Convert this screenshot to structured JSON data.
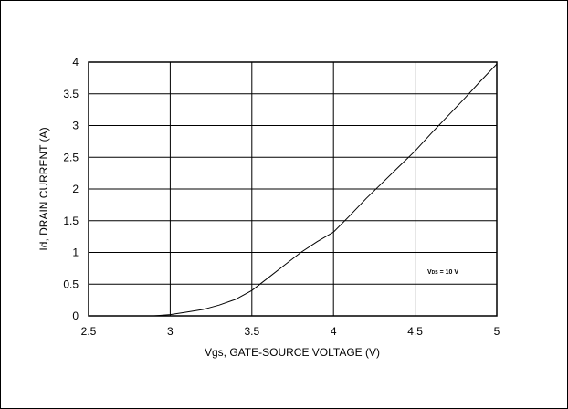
{
  "chart_data": {
    "type": "line",
    "xlabel": "Vgs, GATE-SOURCE VOLTAGE  (V)",
    "ylabel": "Id, DRAIN CURRENT (A)",
    "xlim": [
      2.5,
      5
    ],
    "ylim": [
      0,
      4
    ],
    "x_ticks": [
      "2.5",
      "3",
      "3.5",
      "4",
      "4.5",
      "5"
    ],
    "y_ticks": [
      "0",
      "0.5",
      "1",
      "1.5",
      "2",
      "2.5",
      "3",
      "3.5",
      "4"
    ],
    "grid": true,
    "annotation": {
      "prefix": "V",
      "subscript": "DS",
      "suffix": " = 10 V"
    },
    "series": [
      {
        "x": [
          2.5,
          2.9,
          3.0,
          3.1,
          3.2,
          3.3,
          3.4,
          3.5,
          3.6,
          3.7,
          3.8,
          3.9,
          4.0,
          4.1,
          4.2,
          4.3,
          4.4,
          4.5,
          4.6,
          4.7,
          4.8,
          4.9,
          5.0
        ],
        "y": [
          0,
          0,
          0.02,
          0.06,
          0.1,
          0.17,
          0.26,
          0.4,
          0.6,
          0.8,
          1.0,
          1.17,
          1.32,
          1.58,
          1.85,
          2.1,
          2.35,
          2.6,
          2.88,
          3.15,
          3.42,
          3.7,
          3.97
        ]
      }
    ]
  }
}
